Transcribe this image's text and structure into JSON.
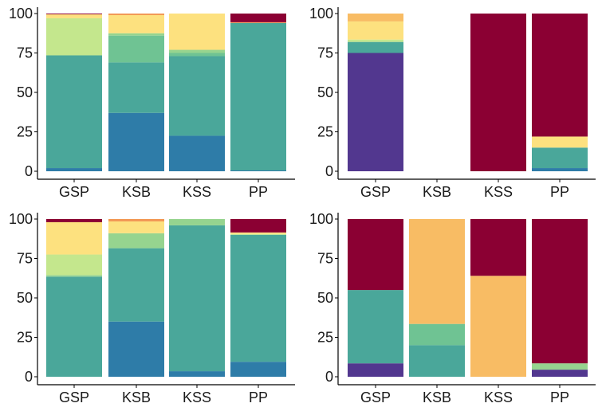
{
  "palette": {
    "c1": "#52378f",
    "c2": "#2e7ca8",
    "c3": "#4aa79a",
    "c4": "#6fc393",
    "c5": "#96d48f",
    "c6": "#c4e78d",
    "c7": "#fde17f",
    "c8": "#f8bc64",
    "c9": "#f29854",
    "c10": "#8b0033"
  },
  "chart_data": [
    {
      "type": "bar",
      "stacked": true,
      "categories": [
        "GSP",
        "KSB",
        "KSS",
        "PP"
      ],
      "ylim": [
        0,
        100
      ],
      "yticks": [
        0,
        25,
        50,
        75,
        100
      ],
      "grid": false,
      "stacks": [
        [
          {
            "color": "c2",
            "value": 2
          },
          {
            "color": "c3",
            "value": 71.5
          },
          {
            "color": "c6",
            "value": 23.5
          },
          {
            "color": "c7",
            "value": 2.5
          },
          {
            "color": "c10",
            "value": 0.5
          }
        ],
        [
          {
            "color": "c2",
            "value": 37
          },
          {
            "color": "c3",
            "value": 32
          },
          {
            "color": "c4",
            "value": 17
          },
          {
            "color": "c5",
            "value": 1.5
          },
          {
            "color": "c7",
            "value": 11.5
          },
          {
            "color": "c9",
            "value": 1
          }
        ],
        [
          {
            "color": "c2",
            "value": 22.5
          },
          {
            "color": "c3",
            "value": 50.5
          },
          {
            "color": "c4",
            "value": 2
          },
          {
            "color": "c5",
            "value": 2
          },
          {
            "color": "c7",
            "value": 23
          }
        ],
        [
          {
            "color": "c2",
            "value": 0.5
          },
          {
            "color": "c3",
            "value": 93.5
          },
          {
            "color": "c9",
            "value": 0.5
          },
          {
            "color": "c10",
            "value": 5.5
          }
        ]
      ]
    },
    {
      "type": "bar",
      "stacked": true,
      "categories": [
        "GSP",
        "KSB",
        "KSS",
        "PP"
      ],
      "ylim": [
        0,
        100
      ],
      "yticks": [
        0,
        25,
        50,
        75,
        100
      ],
      "grid": false,
      "stacks": [
        [
          {
            "color": "c1",
            "value": 75
          },
          {
            "color": "c3",
            "value": 7
          },
          {
            "color": "c6",
            "value": 1.5
          },
          {
            "color": "c7",
            "value": 11.5
          },
          {
            "color": "c8",
            "value": 5
          }
        ],
        [],
        [
          {
            "color": "c10",
            "value": 100
          }
        ],
        [
          {
            "color": "c2",
            "value": 2
          },
          {
            "color": "c3",
            "value": 13
          },
          {
            "color": "c7",
            "value": 7
          },
          {
            "color": "c10",
            "value": 78
          }
        ]
      ]
    },
    {
      "type": "bar",
      "stacked": true,
      "categories": [
        "GSP",
        "KSB",
        "KSS",
        "PP"
      ],
      "ylim": [
        0,
        100
      ],
      "yticks": [
        0,
        25,
        50,
        75,
        100
      ],
      "grid": false,
      "stacks": [
        [
          {
            "color": "c3",
            "value": 63.5
          },
          {
            "color": "c5",
            "value": 1
          },
          {
            "color": "c6",
            "value": 13
          },
          {
            "color": "c7",
            "value": 20.5
          },
          {
            "color": "c10",
            "value": 2
          }
        ],
        [
          {
            "color": "c2",
            "value": 35
          },
          {
            "color": "c3",
            "value": 46.5
          },
          {
            "color": "c5",
            "value": 9.5
          },
          {
            "color": "c7",
            "value": 7.5
          },
          {
            "color": "c9",
            "value": 1.5
          }
        ],
        [
          {
            "color": "c2",
            "value": 3.5
          },
          {
            "color": "c3",
            "value": 92.5
          },
          {
            "color": "c5",
            "value": 4
          }
        ],
        [
          {
            "color": "c2",
            "value": 9.5
          },
          {
            "color": "c3",
            "value": 80.5
          },
          {
            "color": "c6",
            "value": 0.5
          },
          {
            "color": "c7",
            "value": 1
          },
          {
            "color": "c10",
            "value": 8.5
          }
        ]
      ]
    },
    {
      "type": "bar",
      "stacked": true,
      "categories": [
        "GSP",
        "KSB",
        "KSS",
        "PP"
      ],
      "ylim": [
        0,
        100
      ],
      "yticks": [
        0,
        25,
        50,
        75,
        100
      ],
      "grid": false,
      "stacks": [
        [
          {
            "color": "c1",
            "value": 8.5
          },
          {
            "color": "c3",
            "value": 46.5
          },
          {
            "color": "c10",
            "value": 45
          }
        ],
        [
          {
            "color": "c3",
            "value": 20
          },
          {
            "color": "c4",
            "value": 13.5
          },
          {
            "color": "c8",
            "value": 66.5
          }
        ],
        [
          {
            "color": "c8",
            "value": 64
          },
          {
            "color": "c10",
            "value": 36
          }
        ],
        [
          {
            "color": "c1",
            "value": 4.5
          },
          {
            "color": "c5",
            "value": 4
          },
          {
            "color": "c10",
            "value": 91.5
          }
        ]
      ]
    }
  ]
}
